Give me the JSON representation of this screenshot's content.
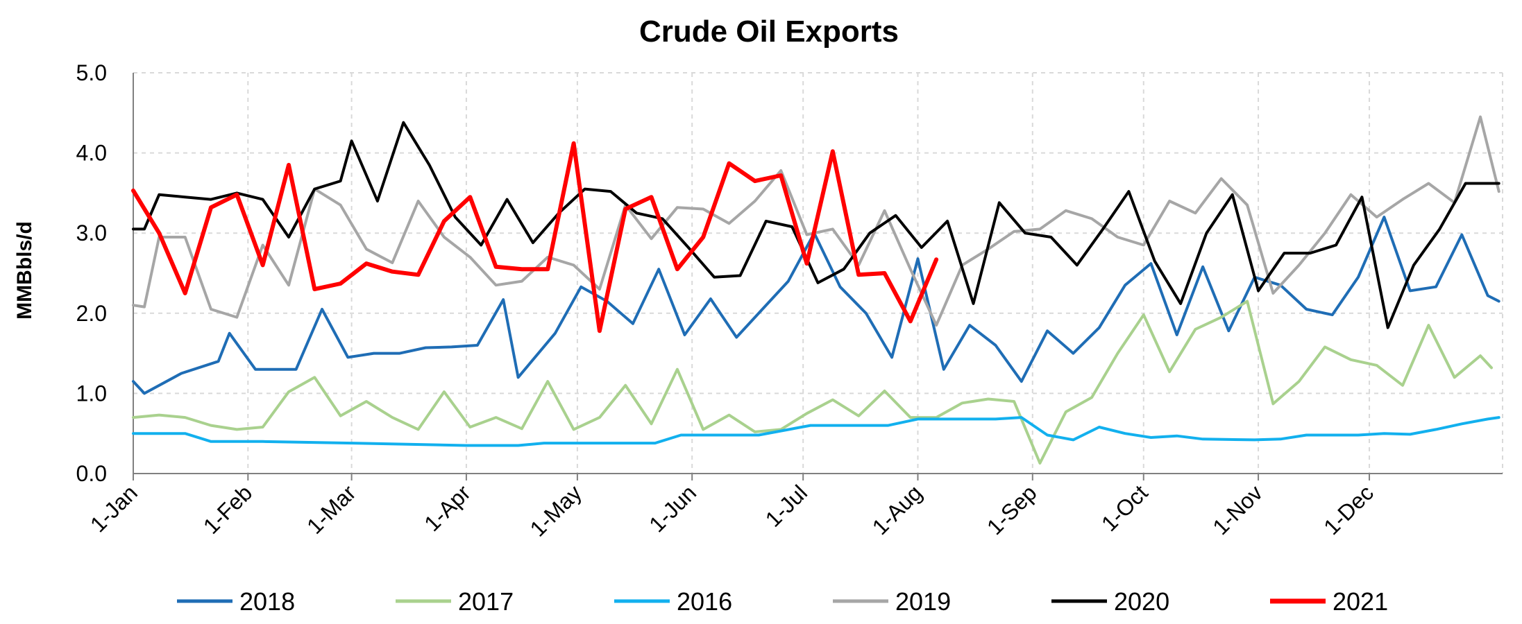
{
  "chart_data": {
    "type": "line",
    "title": "Crude Oil Exports",
    "ylabel": "MMBbls/d",
    "xlabel": "",
    "ylim": [
      0,
      5
    ],
    "yticks": [
      "0.0",
      "1.0",
      "2.0",
      "3.0",
      "4.0",
      "5.0"
    ],
    "xticks": [
      "1-Jan",
      "1-Feb",
      "1-Mar",
      "1-Apr",
      "1-May",
      "1-Jun",
      "1-Jul",
      "1-Aug",
      "1-Sep",
      "1-Oct",
      "1-Nov",
      "1-Dec"
    ],
    "grid": true,
    "legend_position": "bottom",
    "series": [
      {
        "name": "2018",
        "color": "#1F6DB5",
        "points": [
          [
            "1-Jan",
            1.15
          ],
          [
            "4-Jan",
            1.0
          ],
          [
            "14-Jan",
            1.25
          ],
          [
            "24-Jan",
            1.4
          ],
          [
            "27-Jan",
            1.75
          ],
          [
            "3-Feb",
            1.3
          ],
          [
            "14-Feb",
            1.3
          ],
          [
            "21-Feb",
            2.05
          ],
          [
            "28-Feb",
            1.45
          ],
          [
            "7-Mar",
            1.5
          ],
          [
            "14-Mar",
            1.5
          ],
          [
            "21-Mar",
            1.57
          ],
          [
            "28-Mar",
            1.58
          ],
          [
            "4-Apr",
            1.6
          ],
          [
            "11-Apr",
            2.17
          ],
          [
            "15-Apr",
            1.2
          ],
          [
            "25-Apr",
            1.75
          ],
          [
            "2-May",
            2.33
          ],
          [
            "9-May",
            2.15
          ],
          [
            "16-May",
            1.87
          ],
          [
            "23-May",
            2.55
          ],
          [
            "30-May",
            1.73
          ],
          [
            "6-Jun",
            2.18
          ],
          [
            "13-Jun",
            1.7
          ],
          [
            "20-Jun",
            2.05
          ],
          [
            "27-Jun",
            2.4
          ],
          [
            "4-Jul",
            3.0
          ],
          [
            "11-Jul",
            2.33
          ],
          [
            "18-Jul",
            2.0
          ],
          [
            "25-Jul",
            1.45
          ],
          [
            "1-Aug",
            2.68
          ],
          [
            "8-Aug",
            1.3
          ],
          [
            "15-Aug",
            1.85
          ],
          [
            "22-Aug",
            1.6
          ],
          [
            "29-Aug",
            1.15
          ],
          [
            "5-Sep",
            1.78
          ],
          [
            "12-Sep",
            1.5
          ],
          [
            "19-Sep",
            1.82
          ],
          [
            "26-Sep",
            2.35
          ],
          [
            "3-Oct",
            2.62
          ],
          [
            "10-Oct",
            1.73
          ],
          [
            "17-Oct",
            2.58
          ],
          [
            "24-Oct",
            1.78
          ],
          [
            "31-Oct",
            2.45
          ],
          [
            "7-Nov",
            2.35
          ],
          [
            "14-Nov",
            2.05
          ],
          [
            "21-Nov",
            1.98
          ],
          [
            "28-Nov",
            2.45
          ],
          [
            "5-Dec",
            3.2
          ],
          [
            "12-Dec",
            2.28
          ],
          [
            "19-Dec",
            2.33
          ],
          [
            "26-Dec",
            2.98
          ],
          [
            "2-Jan",
            2.22
          ],
          [
            "5-Jan",
            2.15
          ]
        ]
      },
      {
        "name": "2017",
        "color": "#A9D18E",
        "points": [
          [
            "1-Jan",
            0.7
          ],
          [
            "8-Jan",
            0.73
          ],
          [
            "15-Jan",
            0.7
          ],
          [
            "22-Jan",
            0.6
          ],
          [
            "29-Jan",
            0.55
          ],
          [
            "5-Feb",
            0.58
          ],
          [
            "12-Feb",
            1.02
          ],
          [
            "19-Feb",
            1.2
          ],
          [
            "26-Feb",
            0.72
          ],
          [
            "5-Mar",
            0.9
          ],
          [
            "12-Mar",
            0.7
          ],
          [
            "19-Mar",
            0.55
          ],
          [
            "26-Mar",
            1.02
          ],
          [
            "2-Apr",
            0.58
          ],
          [
            "9-Apr",
            0.7
          ],
          [
            "16-Apr",
            0.56
          ],
          [
            "23-Apr",
            1.15
          ],
          [
            "30-Apr",
            0.55
          ],
          [
            "7-May",
            0.7
          ],
          [
            "14-May",
            1.1
          ],
          [
            "21-May",
            0.62
          ],
          [
            "28-May",
            1.3
          ],
          [
            "4-Jun",
            0.55
          ],
          [
            "11-Jun",
            0.73
          ],
          [
            "18-Jun",
            0.52
          ],
          [
            "25-Jun",
            0.55
          ],
          [
            "2-Jul",
            0.75
          ],
          [
            "9-Jul",
            0.92
          ],
          [
            "16-Jul",
            0.72
          ],
          [
            "23-Jul",
            1.03
          ],
          [
            "30-Jul",
            0.7
          ],
          [
            "6-Aug",
            0.7
          ],
          [
            "13-Aug",
            0.88
          ],
          [
            "20-Aug",
            0.93
          ],
          [
            "27-Aug",
            0.9
          ],
          [
            "3-Sep",
            0.13
          ],
          [
            "10-Sep",
            0.77
          ],
          [
            "17-Sep",
            0.95
          ],
          [
            "24-Sep",
            1.5
          ],
          [
            "1-Oct",
            1.98
          ],
          [
            "8-Oct",
            1.27
          ],
          [
            "15-Oct",
            1.8
          ],
          [
            "22-Oct",
            1.95
          ],
          [
            "29-Oct",
            2.15
          ],
          [
            "5-Nov",
            0.87
          ],
          [
            "12-Nov",
            1.15
          ],
          [
            "19-Nov",
            1.58
          ],
          [
            "26-Nov",
            1.42
          ],
          [
            "3-Dec",
            1.35
          ],
          [
            "10-Dec",
            1.1
          ],
          [
            "17-Dec",
            1.85
          ],
          [
            "24-Dec",
            1.2
          ],
          [
            "31-Dec",
            1.47
          ],
          [
            "3-Jan",
            1.32
          ]
        ]
      },
      {
        "name": "2016",
        "color": "#12B0EE",
        "points": [
          [
            "1-Jan",
            0.5
          ],
          [
            "15-Jan",
            0.5
          ],
          [
            "22-Jan",
            0.4
          ],
          [
            "5-Feb",
            0.4
          ],
          [
            "1-Mar",
            0.38
          ],
          [
            "1-Apr",
            0.35
          ],
          [
            "15-Apr",
            0.35
          ],
          [
            "22-Apr",
            0.38
          ],
          [
            "1-May",
            0.38
          ],
          [
            "15-May",
            0.38
          ],
          [
            "22-May",
            0.38
          ],
          [
            "29-May",
            0.48
          ],
          [
            "5-Jun",
            0.48
          ],
          [
            "19-Jun",
            0.48
          ],
          [
            "3-Jul",
            0.6
          ],
          [
            "10-Jul",
            0.6
          ],
          [
            "24-Jul",
            0.6
          ],
          [
            "1-Aug",
            0.68
          ],
          [
            "15-Aug",
            0.68
          ],
          [
            "22-Aug",
            0.68
          ],
          [
            "29-Aug",
            0.7
          ],
          [
            "5-Sep",
            0.48
          ],
          [
            "12-Sep",
            0.42
          ],
          [
            "19-Sep",
            0.58
          ],
          [
            "26-Sep",
            0.5
          ],
          [
            "3-Oct",
            0.45
          ],
          [
            "10-Oct",
            0.47
          ],
          [
            "17-Oct",
            0.43
          ],
          [
            "31-Oct",
            0.42
          ],
          [
            "7-Nov",
            0.43
          ],
          [
            "14-Nov",
            0.48
          ],
          [
            "21-Nov",
            0.48
          ],
          [
            "28-Nov",
            0.48
          ],
          [
            "5-Dec",
            0.5
          ],
          [
            "12-Dec",
            0.49
          ],
          [
            "19-Dec",
            0.55
          ],
          [
            "26-Dec",
            0.62
          ],
          [
            "2-Jan",
            0.68
          ],
          [
            "5-Jan",
            0.7
          ]
        ]
      },
      {
        "name": "2019",
        "color": "#A6A6A6",
        "points": [
          [
            "1-Jan",
            2.1
          ],
          [
            "4-Jan",
            2.08
          ],
          [
            "8-Jan",
            2.95
          ],
          [
            "15-Jan",
            2.95
          ],
          [
            "22-Jan",
            2.05
          ],
          [
            "29-Jan",
            1.95
          ],
          [
            "5-Feb",
            2.85
          ],
          [
            "12-Feb",
            2.35
          ],
          [
            "19-Feb",
            3.55
          ],
          [
            "26-Feb",
            3.35
          ],
          [
            "5-Mar",
            2.8
          ],
          [
            "12-Mar",
            2.63
          ],
          [
            "19-Mar",
            3.4
          ],
          [
            "26-Mar",
            2.95
          ],
          [
            "2-Apr",
            2.7
          ],
          [
            "9-Apr",
            2.35
          ],
          [
            "16-Apr",
            2.4
          ],
          [
            "23-Apr",
            2.7
          ],
          [
            "30-Apr",
            2.6
          ],
          [
            "7-May",
            2.3
          ],
          [
            "14-May",
            3.35
          ],
          [
            "21-May",
            2.93
          ],
          [
            "28-May",
            3.32
          ],
          [
            "4-Jun",
            3.3
          ],
          [
            "11-Jun",
            3.12
          ],
          [
            "18-Jun",
            3.4
          ],
          [
            "25-Jun",
            3.78
          ],
          [
            "2-Jul",
            2.98
          ],
          [
            "9-Jul",
            3.05
          ],
          [
            "16-Jul",
            2.6
          ],
          [
            "23-Jul",
            3.28
          ],
          [
            "30-Jul",
            2.55
          ],
          [
            "6-Aug",
            1.85
          ],
          [
            "13-Aug",
            2.6
          ],
          [
            "20-Aug",
            2.8
          ],
          [
            "27-Aug",
            3.02
          ],
          [
            "3-Sep",
            3.05
          ],
          [
            "10-Sep",
            3.28
          ],
          [
            "17-Sep",
            3.18
          ],
          [
            "24-Sep",
            2.95
          ],
          [
            "1-Oct",
            2.85
          ],
          [
            "8-Oct",
            3.4
          ],
          [
            "15-Oct",
            3.25
          ],
          [
            "22-Oct",
            3.68
          ],
          [
            "29-Oct",
            3.35
          ],
          [
            "5-Nov",
            2.25
          ],
          [
            "12-Nov",
            2.6
          ],
          [
            "19-Nov",
            3.0
          ],
          [
            "26-Nov",
            3.48
          ],
          [
            "3-Dec",
            3.2
          ],
          [
            "10-Dec",
            3.42
          ],
          [
            "17-Dec",
            3.62
          ],
          [
            "24-Dec",
            3.38
          ],
          [
            "31-Dec",
            4.45
          ],
          [
            "5-Jan",
            3.52
          ]
        ]
      },
      {
        "name": "2020",
        "color": "#000000",
        "points": [
          [
            "1-Jan",
            3.05
          ],
          [
            "4-Jan",
            3.05
          ],
          [
            "8-Jan",
            3.48
          ],
          [
            "15-Jan",
            3.45
          ],
          [
            "22-Jan",
            3.42
          ],
          [
            "29-Jan",
            3.5
          ],
          [
            "5-Feb",
            3.42
          ],
          [
            "12-Feb",
            2.95
          ],
          [
            "19-Feb",
            3.55
          ],
          [
            "26-Feb",
            3.65
          ],
          [
            "1-Mar",
            4.15
          ],
          [
            "8-Mar",
            3.4
          ],
          [
            "15-Mar",
            4.38
          ],
          [
            "22-Mar",
            3.85
          ],
          [
            "29-Mar",
            3.2
          ],
          [
            "5-Apr",
            2.85
          ],
          [
            "12-Apr",
            3.42
          ],
          [
            "19-Apr",
            2.88
          ],
          [
            "26-Apr",
            3.25
          ],
          [
            "3-May",
            3.55
          ],
          [
            "10-May",
            3.52
          ],
          [
            "17-May",
            3.25
          ],
          [
            "24-May",
            3.18
          ],
          [
            "31-May",
            2.82
          ],
          [
            "7-Jun",
            2.45
          ],
          [
            "14-Jun",
            2.47
          ],
          [
            "21-Jun",
            3.15
          ],
          [
            "28-Jun",
            3.08
          ],
          [
            "5-Jul",
            2.38
          ],
          [
            "12-Jul",
            2.55
          ],
          [
            "19-Jul",
            3.0
          ],
          [
            "26-Jul",
            3.22
          ],
          [
            "2-Aug",
            2.82
          ],
          [
            "9-Aug",
            3.15
          ],
          [
            "16-Aug",
            2.12
          ],
          [
            "23-Aug",
            3.38
          ],
          [
            "30-Aug",
            3.0
          ],
          [
            "6-Sep",
            2.95
          ],
          [
            "13-Sep",
            2.6
          ],
          [
            "20-Sep",
            3.05
          ],
          [
            "27-Sep",
            3.52
          ],
          [
            "4-Oct",
            2.65
          ],
          [
            "11-Oct",
            2.12
          ],
          [
            "18-Oct",
            3.0
          ],
          [
            "25-Oct",
            3.48
          ],
          [
            "1-Nov",
            2.28
          ],
          [
            "8-Nov",
            2.75
          ],
          [
            "15-Nov",
            2.75
          ],
          [
            "22-Nov",
            2.85
          ],
          [
            "29-Nov",
            3.45
          ],
          [
            "6-Dec",
            1.82
          ],
          [
            "13-Dec",
            2.6
          ],
          [
            "20-Dec",
            3.05
          ],
          [
            "27-Dec",
            3.62
          ],
          [
            "3-Jan",
            3.62
          ],
          [
            "5-Jan",
            3.62
          ]
        ]
      },
      {
        "name": "2021",
        "color": "#FF0000",
        "points": [
          [
            "1-Jan",
            3.53
          ],
          [
            "8-Jan",
            3.0
          ],
          [
            "15-Jan",
            2.25
          ],
          [
            "22-Jan",
            3.32
          ],
          [
            "29-Jan",
            3.48
          ],
          [
            "5-Feb",
            2.6
          ],
          [
            "12-Feb",
            3.85
          ],
          [
            "19-Feb",
            2.3
          ],
          [
            "26-Feb",
            2.37
          ],
          [
            "5-Mar",
            2.62
          ],
          [
            "12-Mar",
            2.52
          ],
          [
            "19-Mar",
            2.48
          ],
          [
            "26-Mar",
            3.15
          ],
          [
            "2-Apr",
            3.45
          ],
          [
            "9-Apr",
            2.58
          ],
          [
            "16-Apr",
            2.55
          ],
          [
            "23-Apr",
            2.55
          ],
          [
            "30-Apr",
            4.12
          ],
          [
            "7-May",
            1.78
          ],
          [
            "14-May",
            3.3
          ],
          [
            "21-May",
            3.45
          ],
          [
            "28-May",
            2.55
          ],
          [
            "4-Jun",
            2.95
          ],
          [
            "11-Jun",
            3.87
          ],
          [
            "18-Jun",
            3.65
          ],
          [
            "25-Jun",
            3.72
          ],
          [
            "2-Jul",
            2.62
          ],
          [
            "9-Jul",
            4.02
          ],
          [
            "16-Jul",
            2.48
          ],
          [
            "23-Jul",
            2.5
          ],
          [
            "30-Jul",
            1.9
          ],
          [
            "6-Aug",
            2.67
          ]
        ]
      }
    ]
  }
}
